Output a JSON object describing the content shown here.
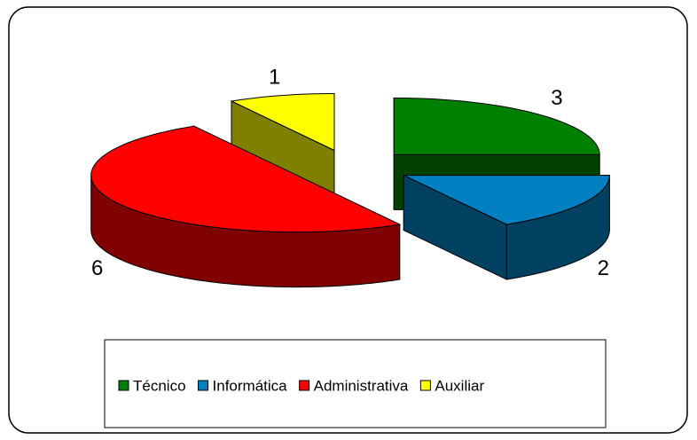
{
  "chart_data": {
    "type": "pie3d",
    "categories": [
      "Técnico",
      "Informática",
      "Administrativa",
      "Auxiliar"
    ],
    "values": [
      3,
      2,
      6,
      1
    ],
    "colors": [
      "#008000",
      "#0080c0",
      "#ff0000",
      "#ffff00"
    ],
    "side_colors": [
      "#004000",
      "#004060",
      "#800000",
      "#808000"
    ],
    "legend": "bottom"
  }
}
